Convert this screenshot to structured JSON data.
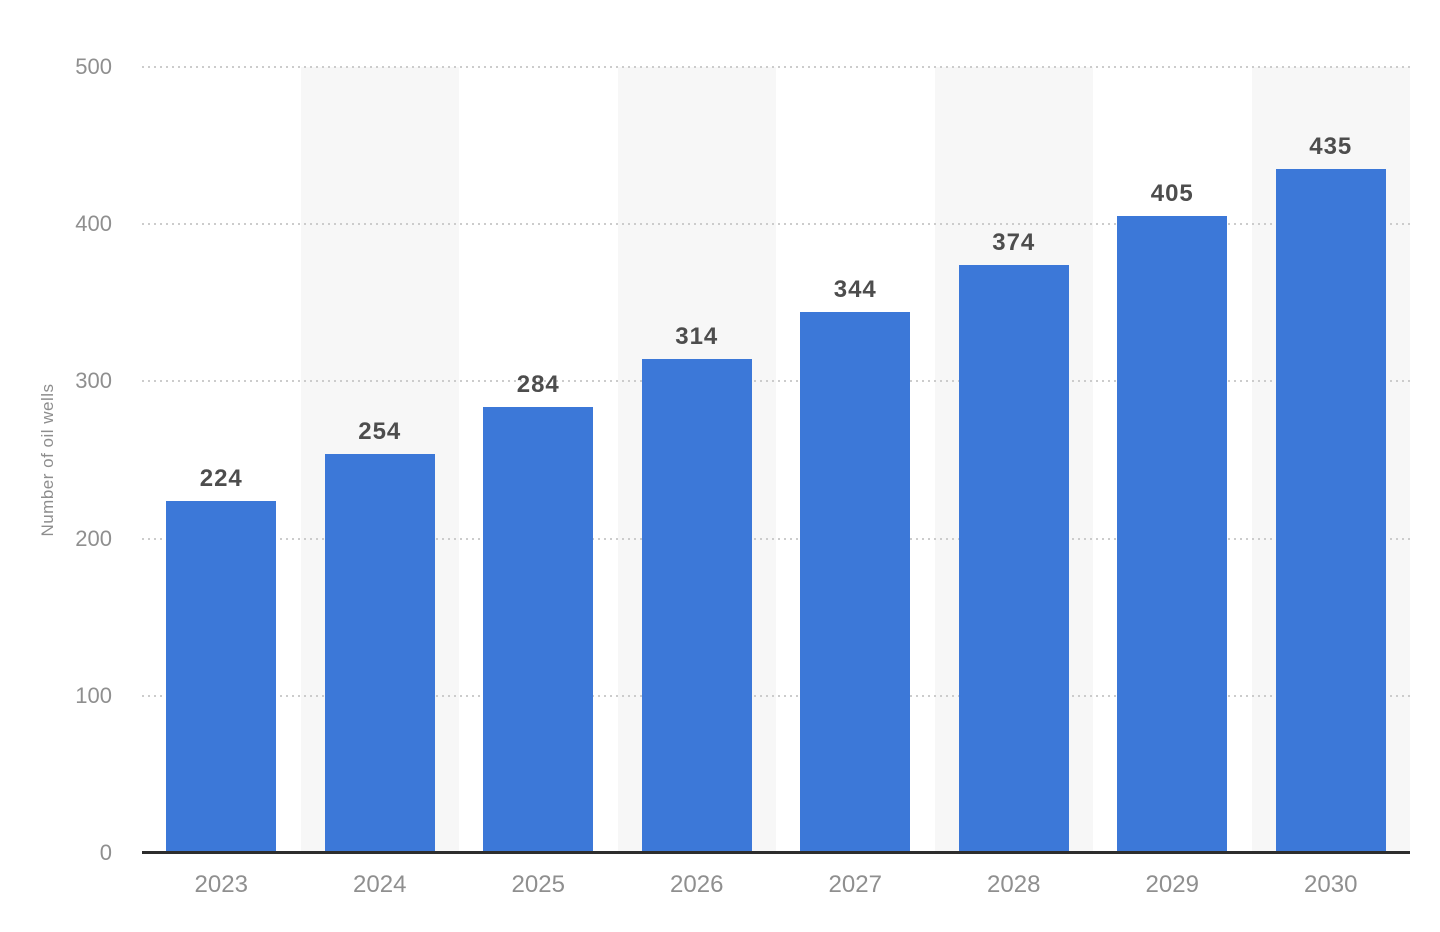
{
  "chart_data": {
    "type": "bar",
    "title": "",
    "categories": [
      "2023",
      "2024",
      "2025",
      "2026",
      "2027",
      "2028",
      "2029",
      "2030"
    ],
    "values": [
      224,
      254,
      284,
      314,
      344,
      374,
      405,
      435
    ],
    "xlabel": "",
    "ylabel": "Number of oil wells",
    "ylim": [
      0,
      500
    ],
    "yticks": [
      0,
      100,
      200,
      300,
      400,
      500
    ],
    "grid": "horizontal dotted",
    "legend": "none",
    "striped_background_columns": [
      "2024",
      "2026",
      "2028",
      "2030"
    ],
    "colors": {
      "bar": "#3c78d8",
      "value_label": "#4d4d4d",
      "axis_text": "#8f8f8f",
      "gridline": "#cccccc",
      "column_stripe": "#f7f7f7",
      "axis_line": "#2d2d2d",
      "background": "#ffffff"
    }
  }
}
